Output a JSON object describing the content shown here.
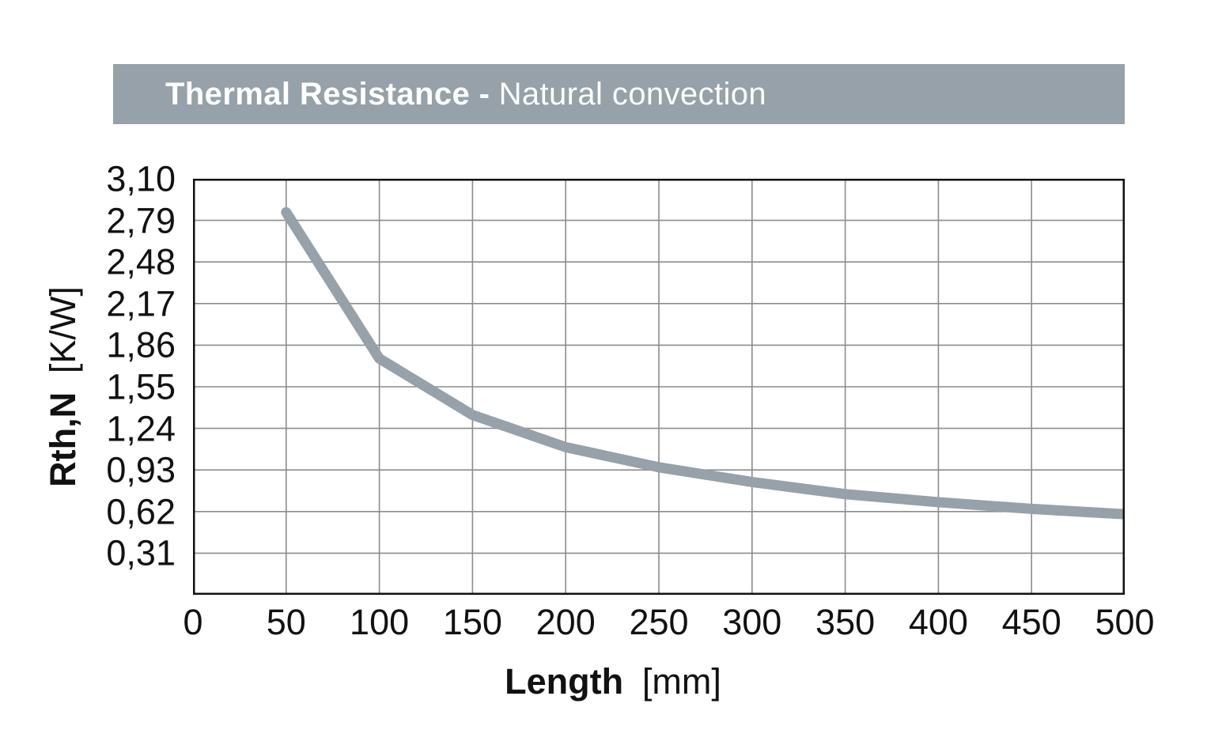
{
  "header": {
    "title_bold": "Thermal Resistance -",
    "title_regular": "Natural convection",
    "bg_color": "#96A1A9",
    "text_color": "#FFFFFF"
  },
  "axes": {
    "y_label_bold": "Rth,N",
    "y_label_unit": "[K/W]",
    "x_label_bold": "Length",
    "x_label_unit": "[mm]"
  },
  "chart_data": {
    "type": "line",
    "title": "Thermal Resistance - Natural convection",
    "xlabel": "Length [mm]",
    "ylabel": "Rth,N [K/W]",
    "x": [
      50,
      100,
      150,
      200,
      250,
      300,
      350,
      400,
      450,
      500
    ],
    "series": [
      {
        "name": "Rth,N natural convection",
        "values": [
          2.85,
          1.76,
          1.34,
          1.1,
          0.95,
          0.84,
          0.75,
          0.69,
          0.64,
          0.6
        ]
      }
    ],
    "xlim": [
      0,
      500
    ],
    "ylim": [
      0,
      3.1
    ],
    "x_ticks": [
      0,
      50,
      100,
      150,
      200,
      250,
      300,
      350,
      400,
      450,
      500
    ],
    "y_ticks": [
      {
        "value": 0.31,
        "label": "0,31"
      },
      {
        "value": 0.62,
        "label": "0,62"
      },
      {
        "value": 0.93,
        "label": "0,93"
      },
      {
        "value": 1.24,
        "label": "1,24"
      },
      {
        "value": 1.55,
        "label": "1,55"
      },
      {
        "value": 1.86,
        "label": "1,86"
      },
      {
        "value": 2.17,
        "label": "2,17"
      },
      {
        "value": 2.48,
        "label": "2,48"
      },
      {
        "value": 2.79,
        "label": "2,79"
      },
      {
        "value": 3.1,
        "label": "3,10"
      }
    ],
    "grid": true,
    "legend": "none",
    "line_color": "#96A1A9",
    "grid_color": "#8C8C8C",
    "border_color": "#111111",
    "line_width": 13
  }
}
